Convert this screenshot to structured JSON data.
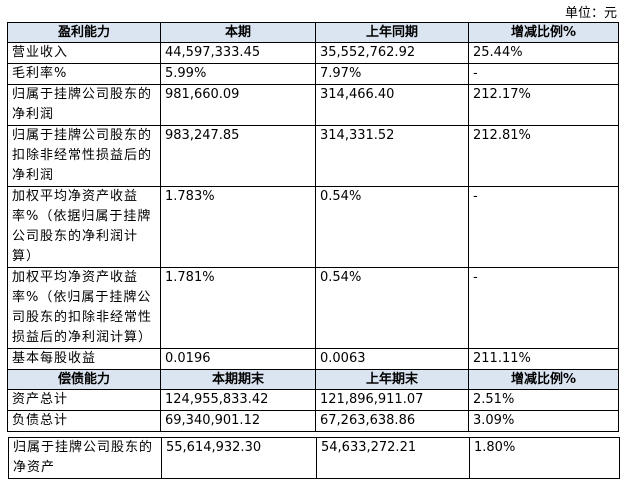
{
  "unit": "单位：元",
  "table": {
    "header": [
      "盈利能力",
      "本期",
      "上年同期",
      "增减比例%"
    ],
    "rows": [
      [
        "营业收入",
        "44,597,333.45",
        "35,552,762.92",
        "25.44%"
      ],
      [
        "毛利率%",
        "5.99%",
        "7.97%",
        "-"
      ],
      [
        "归属于挂牌公司股东的净利润",
        "981,660.09",
        "314,466.40",
        "212.17%"
      ],
      [
        "归属于挂牌公司股东的扣除非经常性损益后的净利润",
        "983,247.85",
        "314,331.52",
        "212.81%"
      ],
      [
        "加权平均净资产收益率%（依据归属于挂牌公司股东的净利润计算）",
        "1.783%",
        "0.54%",
        "-"
      ],
      [
        "加权平均净资产收益率%（依归属于挂牌公司股东的扣除非经常性损益后的净利润计算）",
        "1.781%",
        "0.54%",
        "-"
      ],
      [
        "基本每股收益",
        "0.0196",
        "0.0063",
        "211.11%"
      ]
    ],
    "header2": [
      "偿债能力",
      "本期期末",
      "上年期末",
      "增减比例%"
    ],
    "rows2": [
      [
        "资产总计",
        "124,955,833.42",
        "121,896,911.07",
        "2.51%"
      ],
      [
        "负债总计",
        "69,340,901.12",
        "67,263,638.86",
        "3.09%"
      ]
    ]
  },
  "table3": {
    "rows": [
      [
        "归属于挂牌公司股东的净资产",
        "55,614,932.30",
        "54,633,272.21",
        "1.80%"
      ]
    ]
  }
}
